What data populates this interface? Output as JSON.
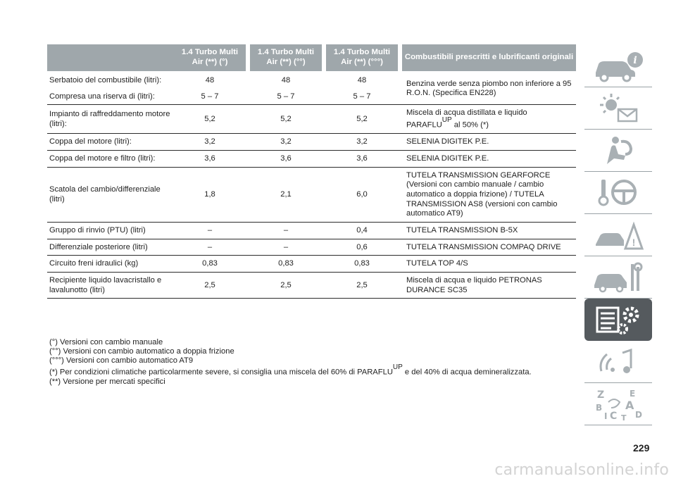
{
  "table": {
    "headers": [
      "",
      "1.4 Turbo Multi Air (**) (°)",
      "1.4 Turbo Multi Air (**) (°°)",
      "1.4 Turbo Multi Air (**) (°°°)",
      "Combustibili prescritti e lubrificanti originali"
    ],
    "rows": [
      {
        "label": "Serbatoio del combustibile (litri):",
        "v1": "48",
        "v2": "48",
        "v3": "48"
      },
      {
        "label": "Compresa una riserva di (litri):",
        "v1": "5 – 7",
        "v2": "5 – 7",
        "v3": "5 – 7"
      },
      {
        "label": "Impianto di raffreddamento motore (litri):",
        "v1": "5,2",
        "v2": "5,2",
        "v3": "5,2",
        "fuel_a": "Miscela di acqua distillata e liquido PARAFLU",
        "fuel_sup": "UP",
        "fuel_b": " al 50% (*)"
      },
      {
        "label": "Coppa del motore (litri):",
        "v1": "3,2",
        "v2": "3,2",
        "v3": "3,2",
        "fuel": "SELENIA DIGITEK P.E."
      },
      {
        "label": "Coppa del motore e filtro (litri):",
        "v1": "3,6",
        "v2": "3,6",
        "v3": "3,6",
        "fuel": "SELENIA DIGITEK P.E."
      },
      {
        "label": "Scatola del cambio/differenziale (litri)",
        "v1": "1,8",
        "v2": "2,1",
        "v3": "6,0",
        "fuel": "TUTELA TRANSMISSION GEARFORCE (Versioni con cambio manuale / cambio automatico a doppia frizione) / TUTELA TRANSMISSION AS8 (versioni con cambio automatico AT9)"
      },
      {
        "label": "Gruppo di rinvio (PTU) (litri)",
        "v1": "–",
        "v2": "–",
        "v3": "0,4",
        "fuel": "TUTELA TRANSMISSION B-5X"
      },
      {
        "label": "Differenziale posteriore (litri)",
        "v1": "–",
        "v2": "–",
        "v3": "0,6",
        "fuel": "TUTELA TRANSMISSION COMPAQ DRIVE"
      },
      {
        "label": "Circuito freni idraulici (kg)",
        "v1": "0,83",
        "v2": "0,83",
        "v3": "0,83",
        "fuel": "TUTELA TOP 4/S"
      },
      {
        "label": "Recipiente liquido lavacristallo e lavalunotto (litri)",
        "v1": "2,5",
        "v2": "2,5",
        "v3": "2,5",
        "fuel": "Miscela di acqua e liquido PETRONAS DURANCE SC35"
      }
    ],
    "fuel_merged": "Benzina verde senza piombo non inferiore a 95 R.O.N. (Specifica EN228)"
  },
  "notes": {
    "n1": "(°) Versioni con cambio manuale",
    "n2": "(°°) Versioni con cambio automatico a doppia frizione",
    "n3": "(°°°) Versioni con cambio automatico AT9",
    "n4_a": "(*) Per condizioni climatiche particolarmente severe, si consiglia una miscela del 60% di PARAFLU",
    "n4_sup": "UP",
    "n4_b": " e del 40% di acqua demineralizzata.",
    "n5": "(**) Versione per mercati specifici"
  },
  "sidebar": {
    "tabs": [
      {
        "icon": "car-info-icon"
      },
      {
        "icon": "dashboard-lights-icon"
      },
      {
        "icon": "airbag-seat-icon"
      },
      {
        "icon": "key-steering-wheel-icon"
      },
      {
        "icon": "emergency-icon"
      },
      {
        "icon": "car-maintenance-icon"
      },
      {
        "icon": "technical-data-icon",
        "active": true
      },
      {
        "icon": "multimedia-icon"
      },
      {
        "icon": "alphabetical-index-icon"
      }
    ]
  },
  "page_number": "229",
  "watermark": "carmanualsonline.info",
  "colors": {
    "header_bg": "#9fa7ab",
    "active_tab": "#555a5e",
    "icon_gray": "#a9b0b4"
  }
}
